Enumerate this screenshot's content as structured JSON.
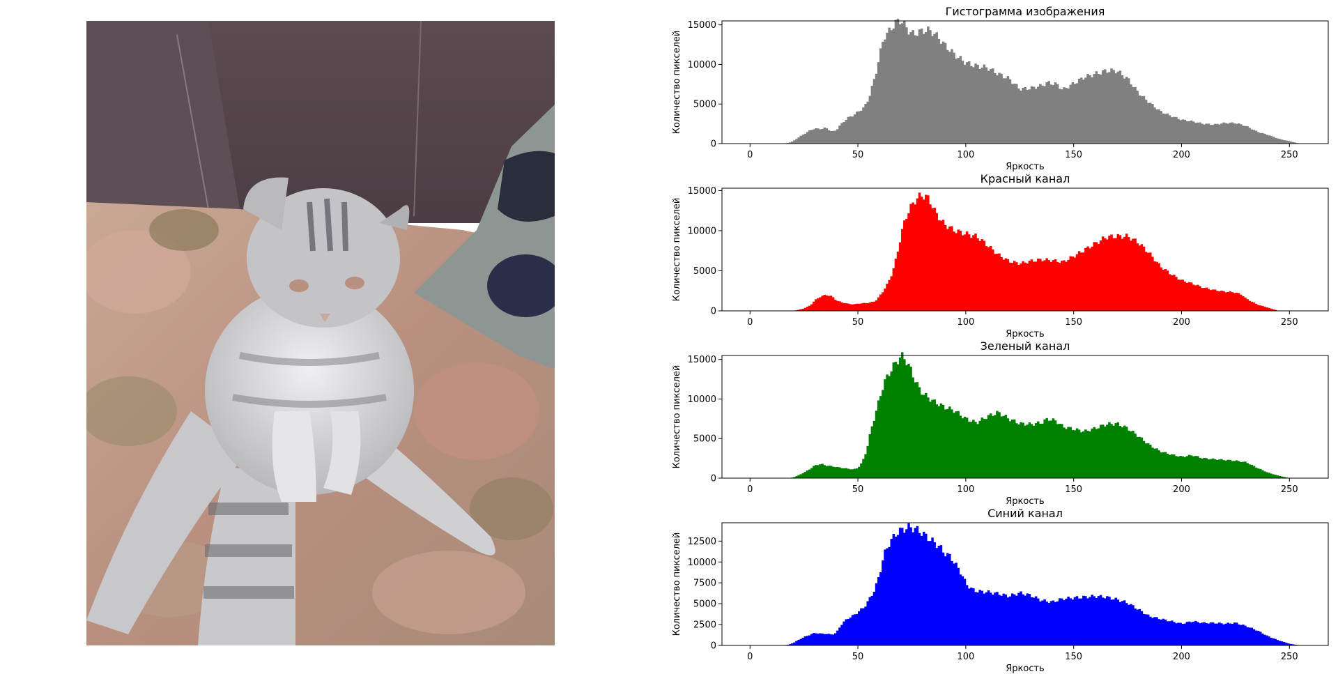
{
  "photo": {
    "description_icon": "kitten-photo",
    "palette": {
      "sofa": "#5a4a4f",
      "sofa_dark": "#4a3c42",
      "blanket": "#b89a86",
      "blanket_rose": "#c49580",
      "blanket_olive": "#8c7a5a",
      "pillow": "#8e9694",
      "pillow_dark": "#2a2e3c",
      "kitten": "#cfcfd2",
      "kitten_stripe": "#6c6c72"
    }
  },
  "chart_data": [
    {
      "type": "bar",
      "title": "Гистограмма изображения",
      "xlabel": "Яркость",
      "ylabel": "Количество пикселей",
      "xlim": [
        -13,
        268
      ],
      "ylim": [
        0,
        15500
      ],
      "xticks": [
        "0",
        "50",
        "100",
        "150",
        "200",
        "250"
      ],
      "yticks": [
        "0",
        "5000",
        "10000",
        "15000"
      ],
      "color": "#808080",
      "x": [
        0,
        15,
        18,
        20,
        22,
        25,
        28,
        30,
        33,
        35,
        38,
        40,
        42,
        45,
        48,
        50,
        53,
        55,
        58,
        60,
        62,
        64,
        66,
        68,
        70,
        72,
        74,
        76,
        78,
        80,
        82,
        85,
        88,
        90,
        95,
        100,
        105,
        110,
        115,
        120,
        125,
        130,
        135,
        138,
        142,
        145,
        150,
        155,
        160,
        165,
        170,
        175,
        180,
        185,
        190,
        195,
        200,
        205,
        210,
        215,
        220,
        225,
        230,
        235,
        240,
        245,
        250,
        253,
        255
      ],
      "values": [
        0,
        0,
        100,
        300,
        700,
        1200,
        1700,
        1900,
        1850,
        2000,
        1500,
        1700,
        2400,
        3200,
        3600,
        4000,
        4600,
        5700,
        8500,
        11000,
        13500,
        14000,
        14800,
        15400,
        15600,
        14800,
        14100,
        13800,
        14100,
        14200,
        14400,
        14000,
        13200,
        12500,
        11200,
        10200,
        9800,
        9600,
        8800,
        8200,
        6900,
        7000,
        7300,
        7700,
        7500,
        6800,
        7600,
        8400,
        8800,
        9200,
        9200,
        8200,
        6400,
        5200,
        4100,
        3500,
        3000,
        2800,
        2500,
        2400,
        2600,
        2600,
        2200,
        1500,
        1100,
        600,
        300,
        100,
        0
      ]
    },
    {
      "type": "bar",
      "title": "Красный канал",
      "xlabel": "Яркость",
      "ylabel": "Количество пикселей",
      "xlim": [
        -13,
        268
      ],
      "ylim": [
        0,
        15300
      ],
      "xticks": [
        "0",
        "50",
        "100",
        "150",
        "200",
        "250"
      ],
      "yticks": [
        "0",
        "5000",
        "10000",
        "15000"
      ],
      "color": "#ff0000",
      "x": [
        0,
        20,
        22,
        25,
        28,
        30,
        32,
        35,
        38,
        40,
        42,
        45,
        48,
        50,
        55,
        58,
        60,
        62,
        64,
        66,
        68,
        70,
        72,
        74,
        76,
        78,
        80,
        82,
        84,
        86,
        88,
        90,
        95,
        100,
        105,
        110,
        115,
        120,
        125,
        130,
        135,
        140,
        145,
        150,
        155,
        160,
        165,
        170,
        175,
        180,
        185,
        190,
        195,
        200,
        205,
        210,
        215,
        220,
        225,
        228,
        230,
        235,
        240,
        245,
        255
      ],
      "values": [
        0,
        0,
        100,
        300,
        700,
        1300,
        1700,
        2000,
        1800,
        1300,
        1100,
        900,
        800,
        900,
        1000,
        1200,
        1800,
        2600,
        3500,
        4800,
        6800,
        9500,
        11500,
        12700,
        13600,
        14200,
        14400,
        14200,
        13400,
        12200,
        11500,
        10800,
        10000,
        9600,
        9300,
        8200,
        7000,
        6200,
        5900,
        6200,
        6400,
        6300,
        6100,
        6800,
        7600,
        8400,
        9200,
        9300,
        9300,
        8500,
        7200,
        5600,
        4600,
        3800,
        3400,
        2900,
        2600,
        2400,
        2300,
        2000,
        1500,
        800,
        400,
        0,
        0
      ]
    },
    {
      "type": "bar",
      "title": "Зеленый канал",
      "xlabel": "Яркость",
      "ylabel": "Количество пикселей",
      "xlim": [
        -13,
        268
      ],
      "ylim": [
        0,
        15500
      ],
      "xticks": [
        "0",
        "50",
        "100",
        "150",
        "200",
        "250"
      ],
      "yticks": [
        "0",
        "5000",
        "10000",
        "15000"
      ],
      "color": "#008000",
      "x": [
        0,
        18,
        20,
        22,
        25,
        28,
        30,
        33,
        35,
        38,
        40,
        45,
        48,
        50,
        52,
        54,
        56,
        58,
        60,
        62,
        64,
        66,
        68,
        70,
        72,
        74,
        76,
        78,
        80,
        85,
        90,
        95,
        100,
        105,
        110,
        115,
        120,
        125,
        130,
        135,
        138,
        142,
        145,
        150,
        155,
        160,
        165,
        170,
        175,
        180,
        185,
        190,
        195,
        200,
        205,
        210,
        215,
        220,
        225,
        230,
        235,
        240,
        245,
        250,
        255
      ],
      "values": [
        0,
        0,
        100,
        300,
        700,
        1200,
        1600,
        1800,
        1600,
        1500,
        1400,
        1200,
        1100,
        1300,
        2000,
        3500,
        6000,
        8000,
        10000,
        12000,
        13000,
        14000,
        14700,
        15500,
        15000,
        14000,
        12700,
        11500,
        10700,
        9700,
        9000,
        8500,
        7500,
        7000,
        7800,
        8300,
        7500,
        6900,
        6800,
        7000,
        7500,
        7200,
        6500,
        6200,
        5900,
        6300,
        6800,
        6900,
        6300,
        5300,
        4200,
        3400,
        3000,
        2700,
        2900,
        2500,
        2400,
        2300,
        2200,
        2000,
        1300,
        700,
        300,
        0,
        0
      ]
    },
    {
      "type": "bar",
      "title": "Синий канал",
      "xlabel": "Яркость",
      "ylabel": "Количество пикселей",
      "xlim": [
        -13,
        268
      ],
      "ylim": [
        0,
        14700
      ],
      "xticks": [
        "0",
        "50",
        "100",
        "150",
        "200",
        "250"
      ],
      "yticks": [
        "0",
        "2500",
        "5000",
        "7500",
        "10000",
        "12500"
      ],
      "color": "#0000ff",
      "x": [
        0,
        15,
        18,
        20,
        22,
        25,
        28,
        30,
        33,
        35,
        38,
        40,
        42,
        45,
        48,
        50,
        53,
        55,
        58,
        60,
        62,
        64,
        66,
        68,
        70,
        72,
        74,
        76,
        78,
        80,
        82,
        85,
        88,
        90,
        93,
        95,
        98,
        100,
        103,
        105,
        110,
        115,
        120,
        125,
        130,
        135,
        140,
        145,
        150,
        155,
        160,
        165,
        170,
        175,
        180,
        185,
        190,
        195,
        200,
        205,
        210,
        215,
        220,
        225,
        230,
        235,
        240,
        245,
        250,
        255
      ],
      "values": [
        0,
        0,
        100,
        300,
        600,
        1000,
        1300,
        1500,
        1400,
        1400,
        1300,
        1500,
        2400,
        3200,
        3600,
        4000,
        4600,
        5400,
        6800,
        8500,
        10800,
        12000,
        12800,
        13500,
        13800,
        14000,
        14200,
        14000,
        13800,
        13400,
        13000,
        12400,
        11800,
        11100,
        10600,
        9800,
        8600,
        7400,
        6700,
        6500,
        6400,
        6200,
        5900,
        6300,
        6000,
        5400,
        5200,
        5600,
        5700,
        5800,
        5900,
        5800,
        5500,
        5100,
        4300,
        3500,
        3200,
        2900,
        2600,
        2900,
        2700,
        2700,
        2600,
        2700,
        2300,
        1800,
        1100,
        600,
        200,
        0
      ]
    }
  ]
}
